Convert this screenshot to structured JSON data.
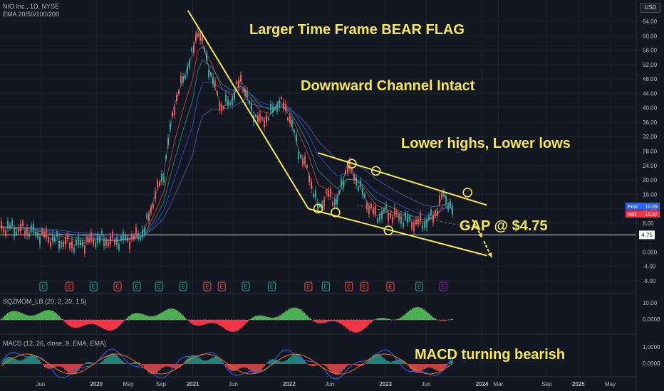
{
  "header": {
    "symbol_line": "NIO Inc., 1D, NYSE",
    "ema_line": "EMA 20/50/100/200",
    "currency_button": "USD"
  },
  "indicators": {
    "sqzmom_label": "SQZMOM_LB (20, 2, 20, 1.5)",
    "macd_label": "MACD (12, 26, close, 9, EMA, EMA)"
  },
  "annotations": {
    "title": "Larger Time Frame BEAR FLAG",
    "channel": "Downward Channel Intact",
    "highs_lows": "Lower highs, Lower lows",
    "gap": "GAP @ $4.75",
    "macd": "MACD turning bearish"
  },
  "colors": {
    "background": "#131722",
    "annotation": "#f7e94d",
    "grid": "#1e222d",
    "candle_up": "#26a69a",
    "candle_down": "#ef5350",
    "earnings_green": "#26a69a",
    "earnings_red": "#ef5350",
    "earnings_purple": "#9c27b0"
  },
  "chart_data": {
    "type": "line",
    "price_axis_ticks": [
      "64.00",
      "60.00",
      "56.00",
      "52.00",
      "48.00",
      "44.00",
      "40.00",
      "36.00",
      "32.00",
      "28.00",
      "24.00",
      "20.00",
      "16.00",
      "12.00",
      "8.00",
      "4.75",
      "0.000",
      "-4.00",
      "-8.00"
    ],
    "price_axis_values": [
      64,
      60,
      56,
      52,
      48,
      44,
      40,
      36,
      32,
      28,
      24,
      20,
      16,
      12,
      8,
      4.75,
      0,
      -4,
      -8
    ],
    "time_axis_labels": [
      "Jun",
      "2020",
      "May",
      "Sep",
      "2021",
      "Jun",
      "2022",
      "Jun",
      "2023",
      "Jun",
      "2024",
      "Mar",
      "Sep",
      "2025",
      "May"
    ],
    "time_axis_values": [
      2019.42,
      2020.0,
      2020.33,
      2020.67,
      2021.0,
      2021.42,
      2022.0,
      2022.42,
      2023.0,
      2023.42,
      2024.0,
      2024.17,
      2024.67,
      2025.0,
      2025.33
    ],
    "price_badges": [
      {
        "label": "Post",
        "value": "10.69",
        "color": "#2962ff"
      },
      {
        "label": "NIO",
        "value": "10.67",
        "color": "#f23645"
      }
    ],
    "gap_level": {
      "value": 4.75,
      "label": "4.75"
    },
    "price_series": {
      "name": "NIO",
      "x": [
        2019.0,
        2019.3,
        2019.6,
        2019.8,
        2020.0,
        2020.2,
        2020.4,
        2020.5,
        2020.6,
        2020.7,
        2020.8,
        2020.9,
        2021.0,
        2021.05,
        2021.1,
        2021.2,
        2021.3,
        2021.4,
        2021.5,
        2021.6,
        2021.7,
        2021.8,
        2021.9,
        2022.0,
        2022.1,
        2022.2,
        2022.3,
        2022.4,
        2022.5,
        2022.6,
        2022.7,
        2022.8,
        2022.9,
        2023.0,
        2023.1,
        2023.2,
        2023.3,
        2023.4,
        2023.5,
        2023.6,
        2023.65,
        2023.7
      ],
      "y": [
        7,
        6,
        3,
        2,
        3.5,
        3,
        4,
        6,
        15,
        22,
        40,
        48,
        55,
        62,
        58,
        48,
        40,
        42,
        48,
        40,
        36,
        38,
        42,
        38,
        28,
        22,
        12,
        16,
        14,
        24,
        20,
        14,
        10,
        11,
        10,
        9,
        8,
        8,
        10,
        16,
        14,
        10.67
      ]
    },
    "channel_lines": [
      {
        "name": "flagpole",
        "x": [
          2020.95,
          2022.2
        ],
        "y": [
          67,
          12
        ]
      },
      {
        "name": "channel-top",
        "x": [
          2022.3,
          2024.05
        ],
        "y": [
          27.5,
          13
        ]
      },
      {
        "name": "channel-bottom",
        "x": [
          2022.2,
          2024.05
        ],
        "y": [
          12,
          -1
        ]
      }
    ],
    "circle_markers": [
      {
        "x": 2022.3,
        "y": 12
      },
      {
        "x": 2022.48,
        "y": 11
      },
      {
        "x": 2022.65,
        "y": 24.5
      },
      {
        "x": 2022.9,
        "y": 22.5
      },
      {
        "x": 2023.03,
        "y": 6
      },
      {
        "x": 2023.85,
        "y": 16.5
      }
    ],
    "earnings_markers": [
      {
        "x": 2019.45,
        "kind": "E",
        "tone": "green"
      },
      {
        "x": 2019.72,
        "kind": "E",
        "tone": "red"
      },
      {
        "x": 2019.97,
        "kind": "E",
        "tone": "green"
      },
      {
        "x": 2020.22,
        "kind": "E",
        "tone": "red"
      },
      {
        "x": 2020.42,
        "kind": "E",
        "tone": "green"
      },
      {
        "x": 2020.65,
        "kind": "E",
        "tone": "green"
      },
      {
        "x": 2020.9,
        "kind": "E",
        "tone": "green"
      },
      {
        "x": 2021.15,
        "kind": "E",
        "tone": "red"
      },
      {
        "x": 2021.3,
        "kind": "E",
        "tone": "red"
      },
      {
        "x": 2021.55,
        "kind": "E",
        "tone": "green"
      },
      {
        "x": 2021.82,
        "kind": "E",
        "tone": "green"
      },
      {
        "x": 2022.2,
        "kind": "E",
        "tone": "red"
      },
      {
        "x": 2022.38,
        "kind": "E",
        "tone": "green"
      },
      {
        "x": 2022.62,
        "kind": "E",
        "tone": "red"
      },
      {
        "x": 2022.78,
        "kind": "E",
        "tone": "red"
      },
      {
        "x": 2023.05,
        "kind": "E",
        "tone": "red"
      },
      {
        "x": 2023.35,
        "kind": "E",
        "tone": "green"
      },
      {
        "x": 2023.6,
        "kind": "E",
        "tone": "purple"
      }
    ],
    "sqzmom_axis_ticks": [
      "10.00",
      "0.0000"
    ],
    "macd_axis_ticks": [
      "1.0000",
      "0.0000"
    ]
  }
}
